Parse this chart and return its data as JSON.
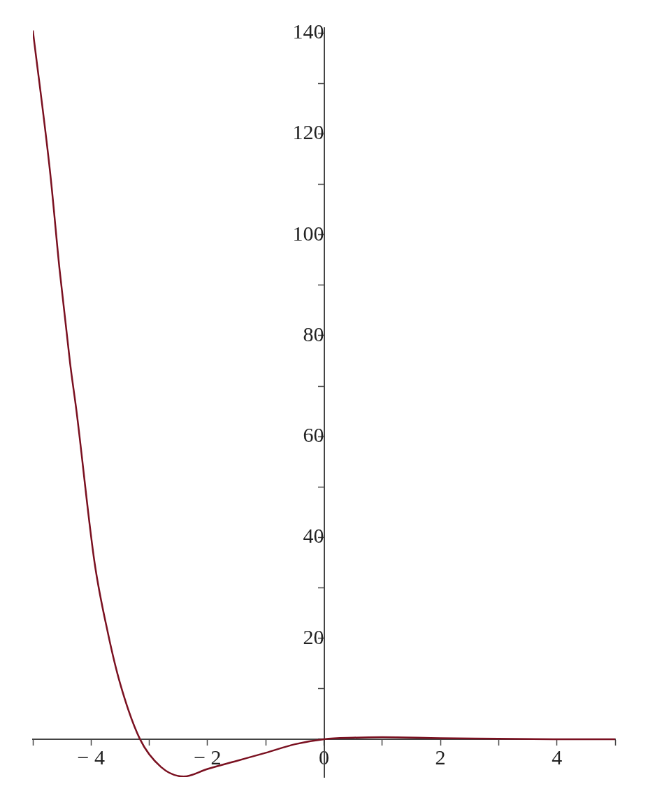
{
  "chart_data": {
    "type": "line",
    "grid": false,
    "marker": "none",
    "line_style": "solid",
    "xlim": [
      -5,
      5
    ],
    "ylim": [
      -7.5,
      141
    ],
    "xticks": [
      {
        "value": -5,
        "label": null
      },
      -4,
      {
        "value": -3,
        "label": null
      },
      -2,
      {
        "value": -1,
        "label": null
      },
      0,
      {
        "value": 1,
        "label": null
      },
      2,
      {
        "value": 3,
        "label": null
      },
      4,
      {
        "value": 5,
        "label": null
      }
    ],
    "yticks": [
      {
        "value": 0,
        "label": null
      },
      {
        "value": 10,
        "label": null
      },
      20,
      {
        "value": 30,
        "label": null
      },
      40,
      {
        "value": 50,
        "label": null
      },
      60,
      {
        "value": 70,
        "label": null
      },
      80,
      {
        "value": 90,
        "label": null
      },
      100,
      {
        "value": 110,
        "label": null
      },
      120,
      {
        "value": 130,
        "label": null
      },
      140
    ],
    "series": [
      {
        "color": "#7a1020",
        "x": [
          -5,
          -4.7,
          -4.54,
          -4.36,
          -4.25,
          -3.94,
          -3.71,
          -3.5,
          -3.16,
          -2.8,
          -2.41,
          -2,
          -1.5,
          -1,
          -0.5,
          0,
          0.5,
          1,
          2,
          3,
          4,
          5
        ],
        "values": [
          140.5,
          112,
          93,
          74.5,
          65,
          35,
          21,
          11,
          0,
          -5.5,
          -7.4,
          -5.9,
          -4.3,
          -2.7,
          -1,
          0,
          0.3,
          0.4,
          0.2,
          0.1,
          0,
          0
        ]
      }
    ]
  }
}
